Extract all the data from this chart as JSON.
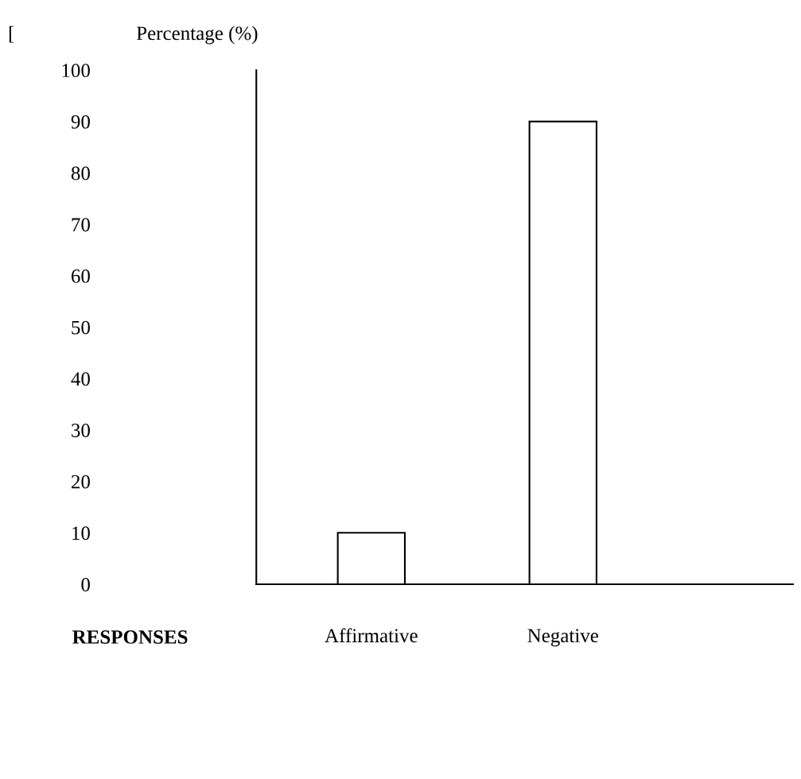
{
  "chart_data": {
    "type": "bar",
    "categories": [
      "Affirmative",
      "Negative"
    ],
    "values": [
      10,
      90
    ],
    "color": "#ffffff",
    "ylabel": "Percentage (%)",
    "xlabel": "RESPONSES",
    "annotations": [
      "["
    ],
    "ylim": [
      0,
      100
    ],
    "yticks": [
      0,
      10,
      20,
      30,
      40,
      50,
      60,
      70,
      80,
      90,
      100
    ],
    "grid": false,
    "legend": false
  }
}
